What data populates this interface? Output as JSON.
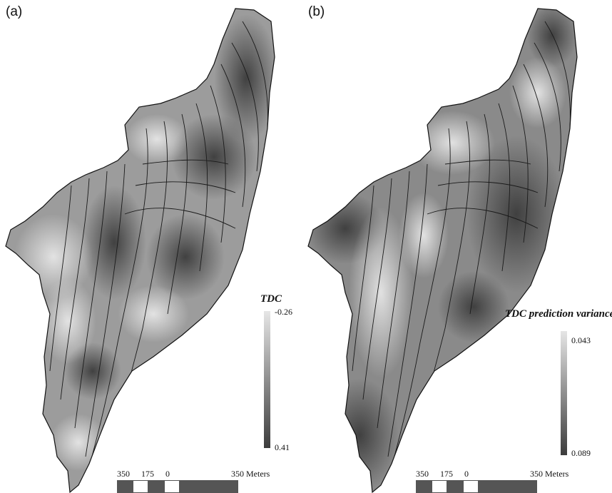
{
  "panels": [
    {
      "label": "(a)",
      "legend": {
        "title": "TDC",
        "top_value": "-0.26",
        "bottom_value": "0.41"
      },
      "scalebar": {
        "ticks": [
          "350",
          "175",
          "0",
          "350 Meters"
        ]
      }
    },
    {
      "label": "(b)",
      "legend": {
        "title": "TDC prediction variance",
        "top_value": "0.043",
        "bottom_value": "0.089"
      },
      "scalebar": {
        "ticks": [
          "350",
          "175",
          "0",
          "350 Meters"
        ]
      }
    }
  ],
  "colors": {
    "low_shade": "#e6e6e6",
    "high_shade": "#3c3c3c",
    "outline": "#111111",
    "contour": "#1a1a1a"
  }
}
